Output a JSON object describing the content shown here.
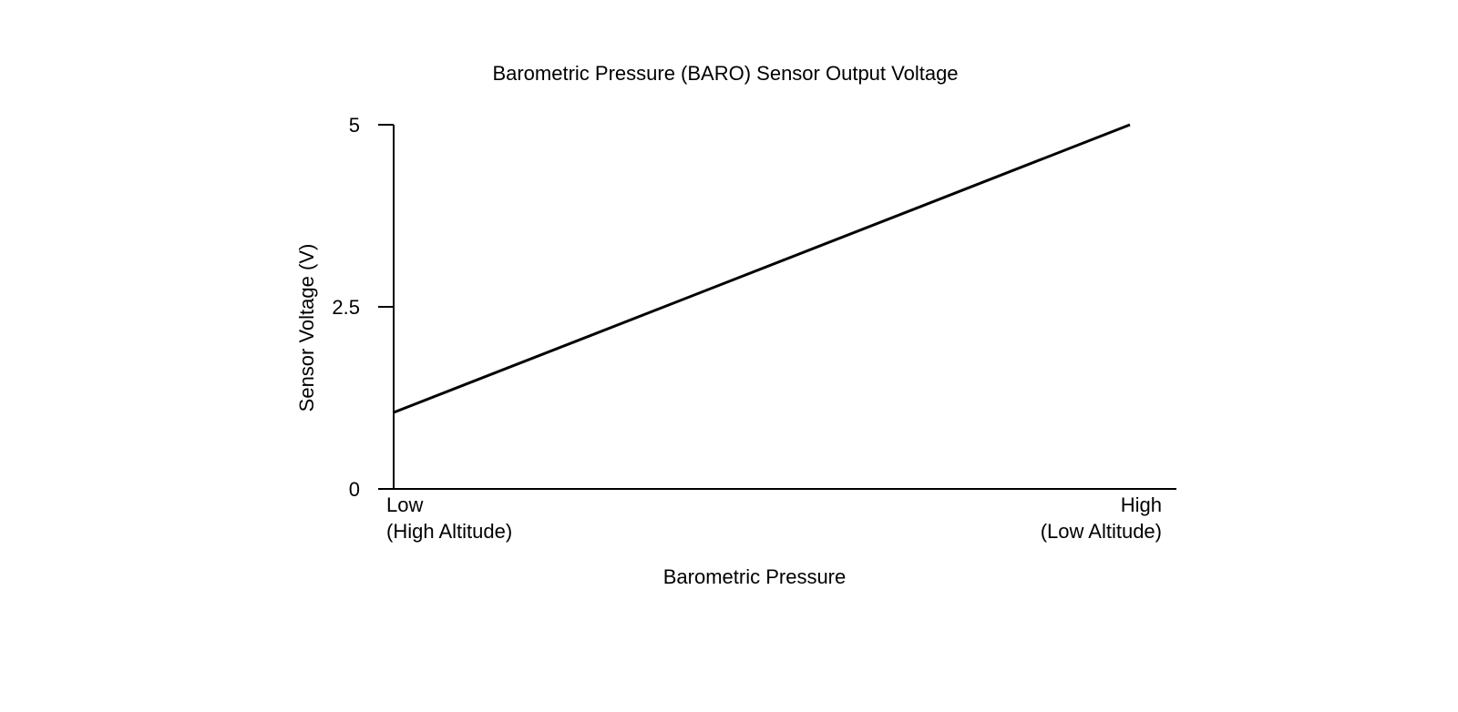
{
  "chart_data": {
    "type": "line",
    "title": "Barometric Pressure (BARO) Sensor Output Voltage",
    "x_label": "Barometric Pressure",
    "y_label": "Sensor Voltage (V)",
    "categories": [
      "Low\n(High Altitude)",
      "High\n(Low Altitude)"
    ],
    "values": [
      1.05,
      5
    ],
    "color": "#000000",
    "ylim": [
      0,
      5
    ],
    "yticks": [
      0,
      2.5,
      5
    ],
    "grid": false
  }
}
